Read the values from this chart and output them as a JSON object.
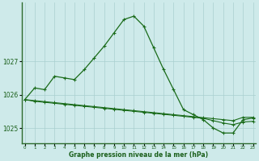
{
  "xlabel": "Graphe pression niveau de la mer (hPa)",
  "hours": [
    0,
    1,
    2,
    3,
    4,
    5,
    6,
    7,
    8,
    9,
    10,
    11,
    12,
    13,
    14,
    15,
    16,
    17,
    18,
    19,
    20,
    21,
    22,
    23
  ],
  "line_main": [
    1025.85,
    1026.2,
    1026.15,
    1026.55,
    1026.5,
    1026.45,
    1026.75,
    1027.1,
    1027.45,
    1027.85,
    1028.25,
    1028.35,
    1028.05,
    1027.4,
    1026.75,
    1026.15,
    1025.55,
    1025.4,
    1025.25,
    1025.0,
    1024.85,
    1024.85,
    1025.25,
    1025.3
  ],
  "line_upper": [
    1025.85,
    1025.82,
    1025.79,
    1025.76,
    1025.73,
    1025.7,
    1025.67,
    1025.64,
    1025.61,
    1025.58,
    1025.55,
    1025.52,
    1025.49,
    1025.46,
    1025.43,
    1025.4,
    1025.37,
    1025.34,
    1025.31,
    1025.28,
    1025.25,
    1025.22,
    1025.32,
    1025.32
  ],
  "line_lower": [
    1025.85,
    1025.8,
    1025.77,
    1025.74,
    1025.71,
    1025.68,
    1025.65,
    1025.62,
    1025.59,
    1025.56,
    1025.53,
    1025.5,
    1025.47,
    1025.44,
    1025.41,
    1025.38,
    1025.35,
    1025.32,
    1025.29,
    1025.22,
    1025.15,
    1025.1,
    1025.18,
    1025.2
  ],
  "line_color": "#1a6b1a",
  "bg_color": "#ceeaea",
  "grid_color": "#aacfcf",
  "ylim_min": 1024.55,
  "ylim_max": 1028.75,
  "yticks": [
    1025,
    1026,
    1027
  ],
  "text_color": "#1a5f1a"
}
